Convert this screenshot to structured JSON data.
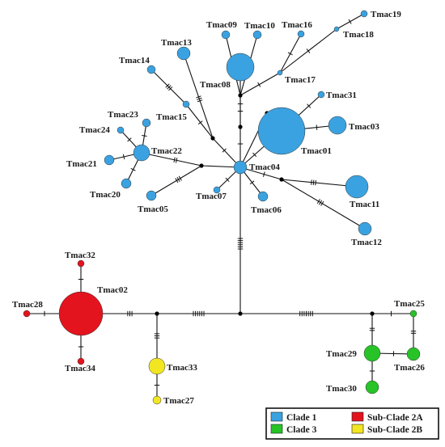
{
  "colors": {
    "clade1": "#3aa2e0",
    "clade3": "#27c327",
    "subclade2a": "#e3141e",
    "subclade2b": "#f2e522",
    "edge": "#111111",
    "node_stroke": "#333333"
  },
  "legend": [
    {
      "label": "Clade 1",
      "color": "#3aa2e0"
    },
    {
      "label": "Sub-Clade 2A",
      "color": "#e3141e"
    },
    {
      "label": "Clade 3",
      "color": "#27c327"
    },
    {
      "label": "Sub-Clade 2B",
      "color": "#f2e522"
    }
  ],
  "haplotypes": [
    {
      "id": "Tmac01",
      "label": "Tmac01",
      "group": "clade1"
    },
    {
      "id": "Tmac02",
      "label": "Tmac02",
      "group": "subclade2a"
    },
    {
      "id": "Tmac03",
      "label": "Tmac03",
      "group": "clade1"
    },
    {
      "id": "Tmac04",
      "label": "Tmac04",
      "group": "clade1"
    },
    {
      "id": "Tmac05",
      "label": "Tmac05",
      "group": "clade1"
    },
    {
      "id": "Tmac06",
      "label": "Tmac06",
      "group": "clade1"
    },
    {
      "id": "Tmac07",
      "label": "Tmac07",
      "group": "clade1"
    },
    {
      "id": "Tmac08",
      "label": "Tmac08",
      "group": "clade1"
    },
    {
      "id": "Tmac09",
      "label": "Tmac09",
      "group": "clade1"
    },
    {
      "id": "Tmac10",
      "label": "Tmac10",
      "group": "clade1"
    },
    {
      "id": "Tmac11",
      "label": "Tmac11",
      "group": "clade1"
    },
    {
      "id": "Tmac12",
      "label": "Tmac12",
      "group": "clade1"
    },
    {
      "id": "Tmac13",
      "label": "Tmac13",
      "group": "clade1"
    },
    {
      "id": "Tmac14",
      "label": "Tmac14",
      "group": "clade1"
    },
    {
      "id": "Tmac15",
      "label": "Tmac15",
      "group": "clade1"
    },
    {
      "id": "Tmac16",
      "label": "Tmac16",
      "group": "clade1"
    },
    {
      "id": "Tmac17",
      "label": "Tmac17",
      "group": "clade1"
    },
    {
      "id": "Tmac18",
      "label": "Tmac18",
      "group": "clade1"
    },
    {
      "id": "Tmac19",
      "label": "Tmac19",
      "group": "clade1"
    },
    {
      "id": "Tmac20",
      "label": "Tmac20",
      "group": "clade1"
    },
    {
      "id": "Tmac21",
      "label": "Tmac21",
      "group": "clade1"
    },
    {
      "id": "Tmac22",
      "label": "Tmac22",
      "group": "clade1"
    },
    {
      "id": "Tmac23",
      "label": "Tmac23",
      "group": "clade1"
    },
    {
      "id": "Tmac24",
      "label": "Tmac24",
      "group": "clade1"
    },
    {
      "id": "Tmac25",
      "label": "Tmac25",
      "group": "clade3"
    },
    {
      "id": "Tmac26",
      "label": "Tmac26",
      "group": "clade3"
    },
    {
      "id": "Tmac27",
      "label": "Tmac27",
      "group": "subclade2b"
    },
    {
      "id": "Tmac28",
      "label": "Tmac28",
      "group": "subclade2a"
    },
    {
      "id": "Tmac29",
      "label": "Tmac29",
      "group": "clade3"
    },
    {
      "id": "Tmac30",
      "label": "Tmac30",
      "group": "clade3"
    },
    {
      "id": "Tmac31",
      "label": "Tmac31",
      "group": "clade1"
    },
    {
      "id": "Tmac32",
      "label": "Tmac32",
      "group": "subclade2a"
    },
    {
      "id": "Tmac33",
      "label": "Tmac33",
      "group": "subclade2b"
    },
    {
      "id": "Tmac34",
      "label": "Tmac34",
      "group": "subclade2a"
    }
  ]
}
